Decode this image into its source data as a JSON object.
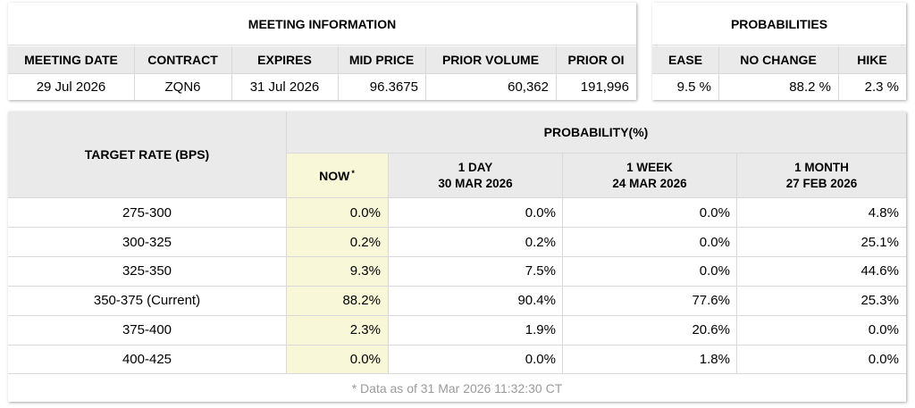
{
  "meeting_info": {
    "title": "MEETING INFORMATION",
    "headers": [
      "MEETING DATE",
      "CONTRACT",
      "EXPIRES",
      "MID PRICE",
      "PRIOR VOLUME",
      "PRIOR OI"
    ],
    "values": [
      "29 Jul 2026",
      "ZQN6",
      "31 Jul 2026",
      "96.3675",
      "60,362",
      "191,996"
    ]
  },
  "probabilities": {
    "title": "PROBABILITIES",
    "headers": [
      "EASE",
      "NO CHANGE",
      "HIKE"
    ],
    "values": [
      "9.5 %",
      "88.2 %",
      "2.3 %"
    ]
  },
  "prob_table": {
    "target_rate_header": "TARGET RATE (BPS)",
    "probability_header": "PROBABILITY(%)",
    "columns": [
      {
        "line1": "NOW",
        "marker": "*",
        "line2": ""
      },
      {
        "line1": "1 DAY",
        "line2": "30 MAR 2026"
      },
      {
        "line1": "1 WEEK",
        "line2": "24 MAR 2026"
      },
      {
        "line1": "1 MONTH",
        "line2": "27 FEB 2026"
      }
    ],
    "rows": [
      {
        "rate": "275-300",
        "values": [
          "0.0%",
          "0.0%",
          "0.0%",
          "4.8%"
        ]
      },
      {
        "rate": "300-325",
        "values": [
          "0.2%",
          "0.2%",
          "0.0%",
          "25.1%"
        ]
      },
      {
        "rate": "325-350",
        "values": [
          "9.3%",
          "7.5%",
          "0.0%",
          "44.6%"
        ]
      },
      {
        "rate": "350-375 (Current)",
        "values": [
          "88.2%",
          "90.4%",
          "77.6%",
          "25.3%"
        ]
      },
      {
        "rate": "375-400",
        "values": [
          "2.3%",
          "1.9%",
          "20.6%",
          "0.0%"
        ]
      },
      {
        "rate": "400-425",
        "values": [
          "0.0%",
          "0.0%",
          "1.8%",
          "0.0%"
        ]
      }
    ],
    "footnote": "* Data as of 31 Mar 2026 11:32:30 CT"
  },
  "colors": {
    "header_bg": "#eaeaea",
    "now_highlight": "#f8f8d8",
    "border": "#d9d9d9",
    "footnote": "#9a9a9a"
  }
}
